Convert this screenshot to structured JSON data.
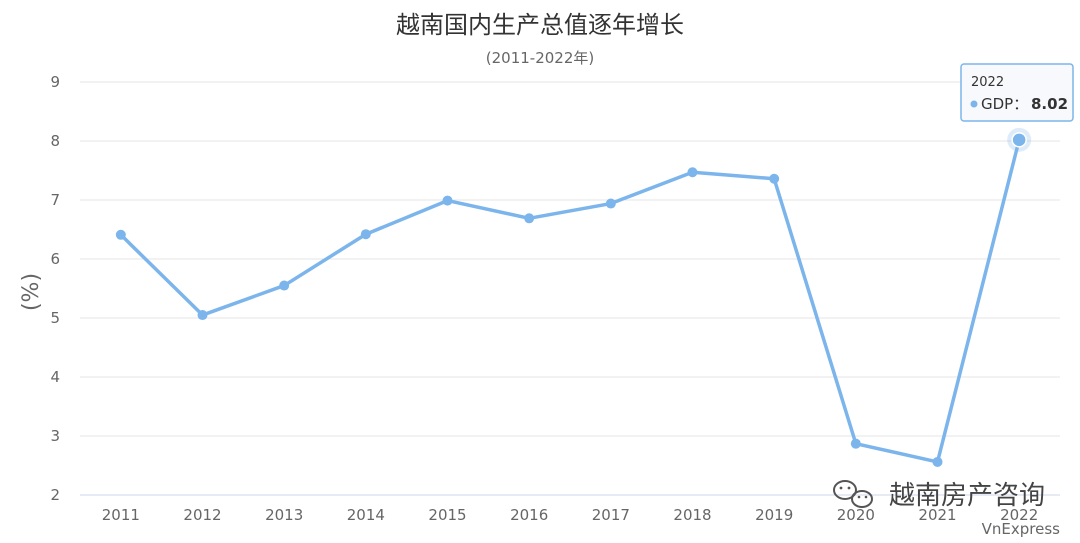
{
  "chart_data": {
    "type": "line",
    "title": "越南国内生产总值逐年增长",
    "subtitle": "(2011-2022年)",
    "ylabel": "(%)",
    "xlabel": "",
    "ylim": [
      2,
      9
    ],
    "yticks": [
      "2",
      "3",
      "4",
      "5",
      "6",
      "7",
      "8",
      "9"
    ],
    "categories": [
      "2011",
      "2012",
      "2013",
      "2014",
      "2015",
      "2016",
      "2017",
      "2018",
      "2019",
      "2020",
      "2021",
      "2022"
    ],
    "series": [
      {
        "name": "GDP",
        "values": [
          6.41,
          5.05,
          5.55,
          6.42,
          6.99,
          6.69,
          6.94,
          7.47,
          7.36,
          2.87,
          2.56,
          8.02
        ],
        "color": "#7cb5ec"
      }
    ],
    "grid": true,
    "tooltip": {
      "year": "2022",
      "label": "GDP：",
      "value": "8.02"
    }
  },
  "watermark": {
    "text": "越南房产咨询",
    "icon": "wechat-icon"
  },
  "source": "VnExpress"
}
